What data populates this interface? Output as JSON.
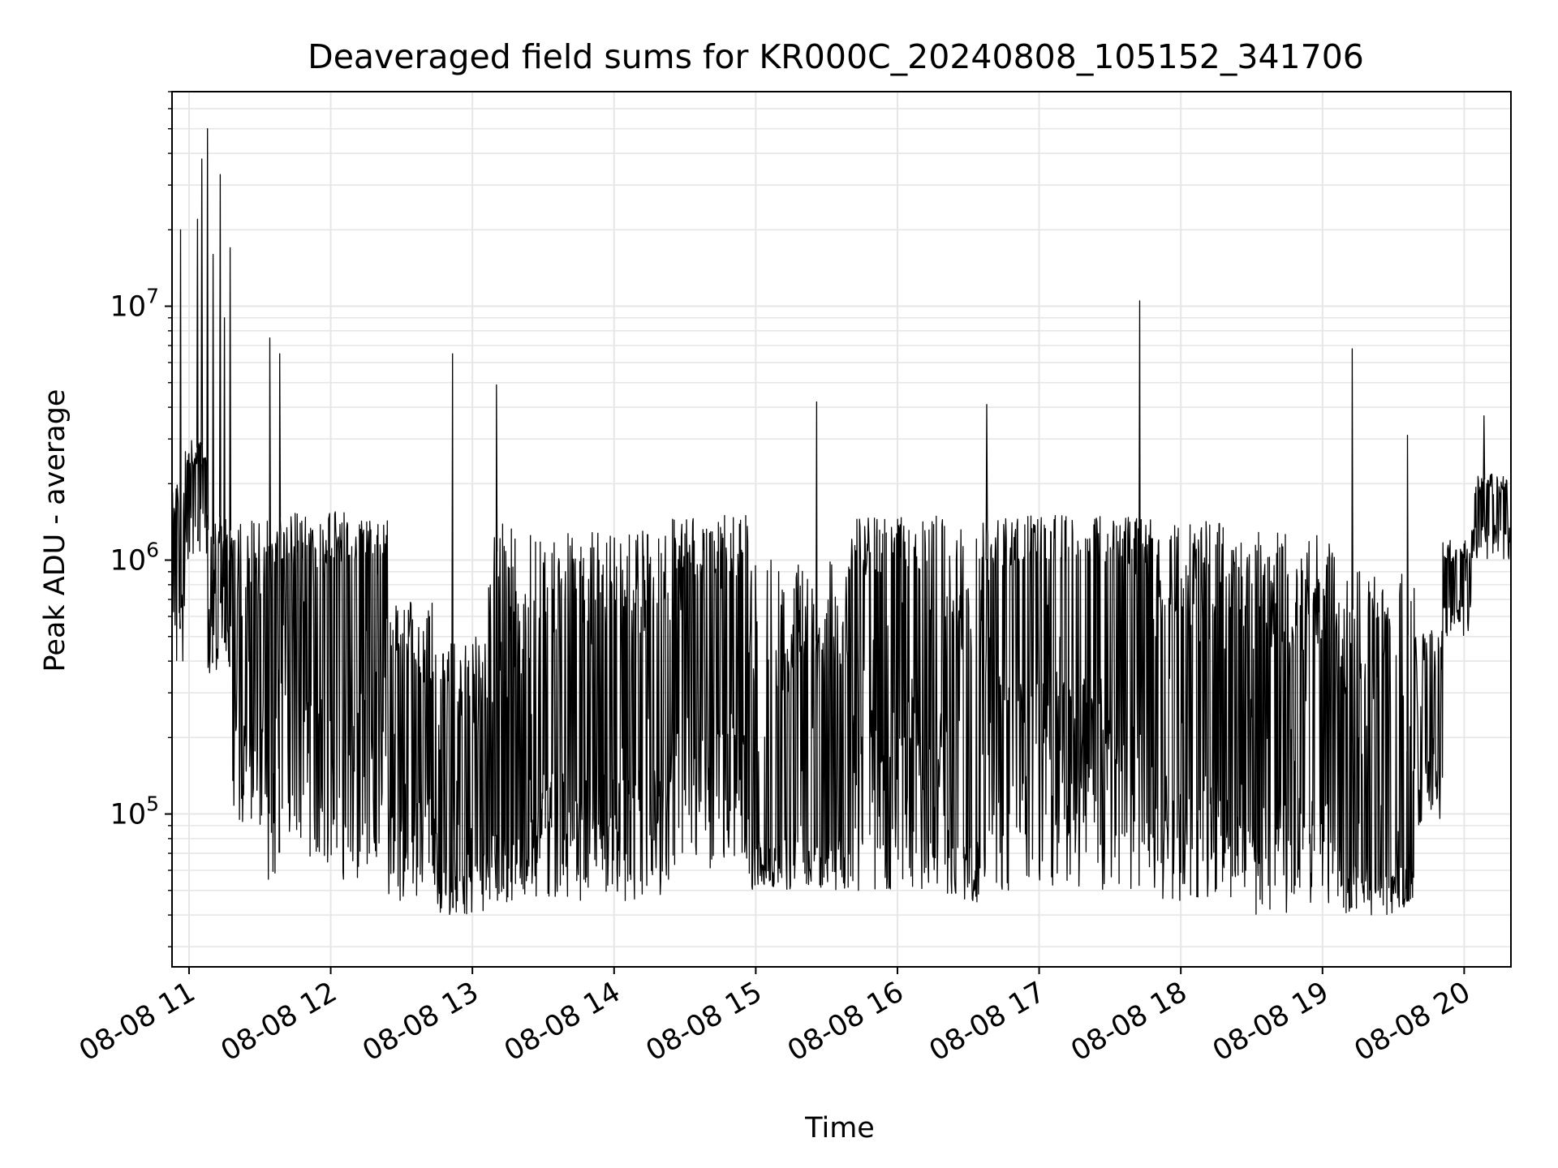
{
  "chart_data": {
    "type": "line",
    "title": "Deaveraged field sums for KR000C_20240808_105152_341706",
    "xlabel": "Time",
    "ylabel": "Peak ADU - average",
    "yscale": "log",
    "grid": true,
    "line_color": "#000000",
    "grid_color": "#e6e6e6",
    "x_axis": {
      "ticks": [
        {
          "label": "08-08 11",
          "hour": 11
        },
        {
          "label": "08-08 12",
          "hour": 12
        },
        {
          "label": "08-08 13",
          "hour": 13
        },
        {
          "label": "08-08 14",
          "hour": 14
        },
        {
          "label": "08-08 15",
          "hour": 15
        },
        {
          "label": "08-08 16",
          "hour": 16
        },
        {
          "label": "08-08 17",
          "hour": 17
        },
        {
          "label": "08-08 18",
          "hour": 18
        },
        {
          "label": "08-08 19",
          "hour": 19
        },
        {
          "label": "08-08 20",
          "hour": 20
        }
      ],
      "range_hours": [
        10.88,
        20.33
      ]
    },
    "y_axis": {
      "ticks": [
        {
          "base": "10",
          "exp": "5",
          "value": 100000
        },
        {
          "base": "10",
          "exp": "6",
          "value": 1000000
        },
        {
          "base": "10",
          "exp": "7",
          "value": 10000000
        }
      ],
      "range": [
        25000,
        70000000
      ]
    },
    "series": [
      {
        "phases": [
          {
            "t0": 10.88,
            "t1": 10.97,
            "floor": 380000,
            "base": 800000,
            "ceil": 2000000
          },
          {
            "t0": 10.97,
            "t1": 11.12,
            "floor": 1000000,
            "base": 1800000,
            "ceil": 3000000
          },
          {
            "t0": 11.12,
            "t1": 11.3,
            "floor": 350000,
            "base": 700000,
            "ceil": 1500000
          },
          {
            "t0": 11.3,
            "t1": 11.55,
            "floor": 90000,
            "base": 300000,
            "ceil": 1500000
          },
          {
            "t0": 11.55,
            "t1": 12.4,
            "floor": 55000,
            "base": 600000,
            "ceil": 1550000
          },
          {
            "t0": 12.4,
            "t1": 12.75,
            "floor": 45000,
            "base": 150000,
            "ceil": 700000
          },
          {
            "t0": 12.75,
            "t1": 13.1,
            "floor": 40000,
            "base": 80000,
            "ceil": 500000
          },
          {
            "t0": 13.1,
            "t1": 13.45,
            "floor": 45000,
            "base": 100000,
            "ceil": 1400000
          },
          {
            "t0": 13.45,
            "t1": 14.4,
            "floor": 45000,
            "base": 200000,
            "ceil": 1300000
          },
          {
            "t0": 14.4,
            "t1": 14.95,
            "floor": 60000,
            "base": 400000,
            "ceil": 1500000
          },
          {
            "t0": 14.95,
            "t1": 15.65,
            "floor": 50000,
            "base": 90000,
            "ceil": 1000000
          },
          {
            "t0": 15.65,
            "t1": 16.35,
            "floor": 50000,
            "base": 500000,
            "ceil": 1500000
          },
          {
            "t0": 16.35,
            "t1": 16.6,
            "floor": 45000,
            "base": 100000,
            "ceil": 1500000
          },
          {
            "t0": 16.6,
            "t1": 17.75,
            "floor": 50000,
            "base": 600000,
            "ceil": 1500000
          },
          {
            "t0": 17.75,
            "t1": 18.3,
            "floor": 45000,
            "base": 200000,
            "ceil": 1450000
          },
          {
            "t0": 18.3,
            "t1": 19.1,
            "floor": 40000,
            "base": 150000,
            "ceil": 1300000
          },
          {
            "t0": 19.1,
            "t1": 19.65,
            "floor": 40000,
            "base": 70000,
            "ceil": 900000
          },
          {
            "t0": 19.65,
            "t1": 19.85,
            "floor": 90000,
            "base": 250000,
            "ceil": 550000
          },
          {
            "t0": 19.85,
            "t1": 20.05,
            "floor": 500000,
            "base": 800000,
            "ceil": 1200000
          },
          {
            "t0": 20.05,
            "t1": 20.33,
            "floor": 1000000,
            "base": 1500000,
            "ceil": 2200000
          }
        ],
        "spikes": [
          {
            "x": 10.94,
            "y": 20000000
          },
          {
            "x": 11.06,
            "y": 22000000
          },
          {
            "x": 11.09,
            "y": 38000000
          },
          {
            "x": 11.13,
            "y": 50000000
          },
          {
            "x": 11.17,
            "y": 16000000
          },
          {
            "x": 11.22,
            "y": 33000000
          },
          {
            "x": 11.25,
            "y": 9000000
          },
          {
            "x": 11.29,
            "y": 17000000
          },
          {
            "x": 11.57,
            "y": 7500000
          },
          {
            "x": 11.64,
            "y": 6500000
          },
          {
            "x": 12.86,
            "y": 6500000
          },
          {
            "x": 13.17,
            "y": 4900000
          },
          {
            "x": 15.43,
            "y": 4200000
          },
          {
            "x": 16.63,
            "y": 4100000
          },
          {
            "x": 17.71,
            "y": 10500000
          },
          {
            "x": 19.21,
            "y": 6800000
          },
          {
            "x": 19.6,
            "y": 3100000
          },
          {
            "x": 20.14,
            "y": 3700000
          }
        ]
      }
    ]
  }
}
